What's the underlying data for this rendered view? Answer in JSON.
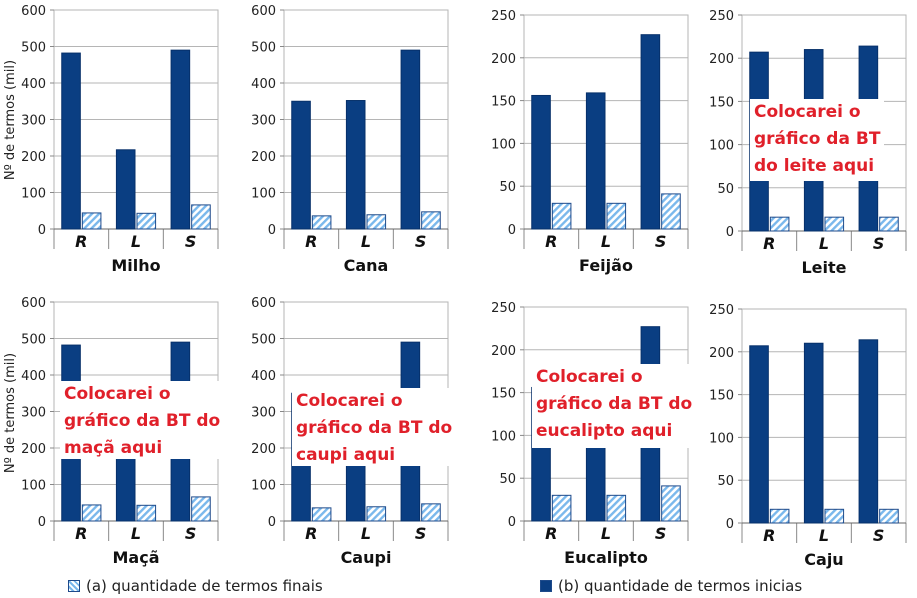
{
  "y_axis_label": "Nº de termos (mil)",
  "legend": {
    "final": "(a) quantidade de termos finais",
    "initial": "(b) quantidade de termos inicias"
  },
  "colors": {
    "initial": "#0a3e82",
    "final_light": "#7ab8ec",
    "final_border": "#1e4a8a",
    "overlay_text": "#e0202a"
  },
  "overlays": [
    {
      "lines": [
        "Colocarei o",
        "gráfico da BT",
        "do leite aqui"
      ]
    },
    {
      "lines": [
        "Colocarei o",
        "gráfico da BT do",
        "maçã aqui"
      ]
    },
    {
      "lines": [
        "Colocarei o",
        "gráfico da BT do",
        "caupi aqui"
      ]
    },
    {
      "lines": [
        "Colocarei o",
        "gráfico da BT do",
        "eucalipto aqui"
      ]
    }
  ],
  "chart_data": [
    {
      "type": "bar",
      "title": "Milho",
      "categories": [
        "R",
        "L",
        "S"
      ],
      "series": [
        {
          "name": "(b) quantidade de termos inicias",
          "values": [
            482,
            217,
            490
          ]
        },
        {
          "name": "(a) quantidade de termos finais",
          "values": [
            44,
            43,
            66
          ]
        }
      ],
      "ylim": [
        0,
        600
      ],
      "yticks": [
        0,
        100,
        200,
        300,
        400,
        500,
        600
      ],
      "grid": true
    },
    {
      "type": "bar",
      "title": "Cana",
      "categories": [
        "R",
        "L",
        "S"
      ],
      "series": [
        {
          "name": "(b) quantidade de termos inicias",
          "values": [
            350,
            352,
            490
          ]
        },
        {
          "name": "(a) quantidade de termos finais",
          "values": [
            36,
            39,
            47
          ]
        }
      ],
      "ylim": [
        0,
        600
      ],
      "yticks": [
        0,
        100,
        200,
        300,
        400,
        500,
        600
      ],
      "grid": true
    },
    {
      "type": "bar",
      "title": "Feijão",
      "categories": [
        "R",
        "L",
        "S"
      ],
      "series": [
        {
          "name": "(b) quantidade de termos inicias",
          "values": [
            156,
            159,
            227
          ]
        },
        {
          "name": "(a) quantidade de termos finais",
          "values": [
            30,
            30,
            41
          ]
        }
      ],
      "ylim": [
        0,
        250
      ],
      "yticks": [
        0,
        50,
        100,
        150,
        200,
        250
      ],
      "grid": true
    },
    {
      "type": "bar",
      "title": "Leite",
      "categories": [
        "R",
        "L",
        "S"
      ],
      "series": [
        {
          "name": "(b) quantidade de termos inicias",
          "values": [
            207,
            210,
            214
          ]
        },
        {
          "name": "(a) quantidade de termos finais",
          "values": [
            16,
            16,
            16
          ]
        }
      ],
      "ylim": [
        0,
        250
      ],
      "yticks": [
        0,
        50,
        100,
        150,
        200,
        250
      ],
      "grid": true
    },
    {
      "type": "bar",
      "title": "Maçã",
      "categories": [
        "R",
        "L",
        "S"
      ],
      "series": [
        {
          "name": "(b) quantidade de termos inicias",
          "values": [
            482,
            217,
            490
          ]
        },
        {
          "name": "(a) quantidade de termos finais",
          "values": [
            44,
            43,
            66
          ]
        }
      ],
      "ylim": [
        0,
        600
      ],
      "yticks": [
        0,
        100,
        200,
        300,
        400,
        500,
        600
      ],
      "grid": true
    },
    {
      "type": "bar",
      "title": "Caupi",
      "categories": [
        "R",
        "L",
        "S"
      ],
      "series": [
        {
          "name": "(b) quantidade de termos inicias",
          "values": [
            350,
            352,
            490
          ]
        },
        {
          "name": "(a) quantidade de termos finais",
          "values": [
            36,
            39,
            47
          ]
        }
      ],
      "ylim": [
        0,
        600
      ],
      "yticks": [
        0,
        100,
        200,
        300,
        400,
        500,
        600
      ],
      "grid": true
    },
    {
      "type": "bar",
      "title": "Eucalipto",
      "categories": [
        "R",
        "L",
        "S"
      ],
      "series": [
        {
          "name": "(b) quantidade de termos inicias",
          "values": [
            156,
            159,
            227
          ]
        },
        {
          "name": "(a) quantidade de termos finais",
          "values": [
            30,
            30,
            41
          ]
        }
      ],
      "ylim": [
        0,
        250
      ],
      "yticks": [
        0,
        50,
        100,
        150,
        200,
        250
      ],
      "grid": true
    },
    {
      "type": "bar",
      "title": "Caju",
      "categories": [
        "R",
        "L",
        "S"
      ],
      "series": [
        {
          "name": "(b) quantidade de termos inicias",
          "values": [
            207,
            210,
            214
          ]
        },
        {
          "name": "(a) quantidade de termos finais",
          "values": [
            16,
            16,
            16
          ]
        }
      ],
      "ylim": [
        0,
        250
      ],
      "yticks": [
        0,
        50,
        100,
        150,
        200,
        250
      ],
      "grid": true
    }
  ]
}
